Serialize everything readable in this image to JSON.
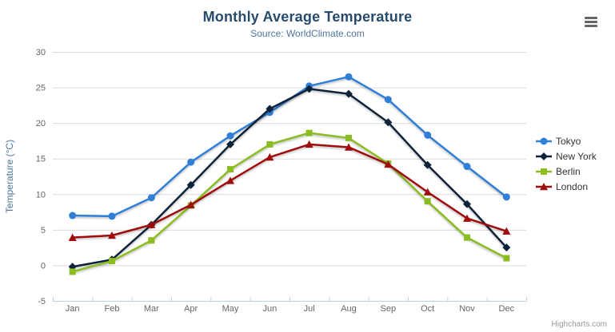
{
  "credits": "Highcharts.com",
  "colors": {
    "title": "#274b6d",
    "subtitle": "#4d759e",
    "axis_title": "#4d759e",
    "tick_label": "#666666",
    "gridline": "#d9d9d9",
    "axis_line": "#c0d0e0",
    "legend_text": "#333333",
    "credits_text": "#999999",
    "context_button": "#666666"
  },
  "chart_data": {
    "type": "line",
    "title": "Monthly Average Temperature",
    "subtitle": "Source: WorldClimate.com",
    "xlabel": "",
    "ylabel": "Temperature (°C)",
    "ylim": [
      -5,
      30
    ],
    "yticks": [
      -5,
      0,
      5,
      10,
      15,
      20,
      25,
      30
    ],
    "categories": [
      "Jan",
      "Feb",
      "Mar",
      "Apr",
      "May",
      "Jun",
      "Jul",
      "Aug",
      "Sep",
      "Oct",
      "Nov",
      "Dec"
    ],
    "grid": "horizontal",
    "legend_position": "right",
    "series": [
      {
        "name": "Tokyo",
        "color": "#2f7ed8",
        "marker": "circle",
        "values": [
          7.0,
          6.9,
          9.5,
          14.5,
          18.2,
          21.5,
          25.2,
          26.5,
          23.3,
          18.3,
          13.9,
          9.6
        ]
      },
      {
        "name": "New York",
        "color": "#0d233a",
        "marker": "diamond",
        "values": [
          -0.2,
          0.8,
          5.7,
          11.3,
          17.0,
          22.0,
          24.8,
          24.1,
          20.1,
          14.1,
          8.6,
          2.5
        ]
      },
      {
        "name": "Berlin",
        "color": "#8bbc21",
        "marker": "square",
        "values": [
          -0.9,
          0.6,
          3.5,
          8.4,
          13.5,
          17.0,
          18.6,
          17.9,
          14.3,
          9.0,
          3.9,
          1.0
        ]
      },
      {
        "name": "London",
        "color": "#a00c0c",
        "marker": "triangle",
        "values": [
          3.9,
          4.2,
          5.7,
          8.5,
          11.9,
          15.2,
          17.0,
          16.6,
          14.2,
          10.3,
          6.6,
          4.8
        ]
      }
    ]
  }
}
